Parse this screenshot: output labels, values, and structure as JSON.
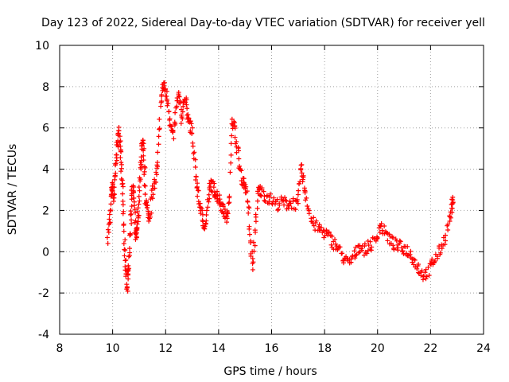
{
  "chart_data": {
    "type": "scatter",
    "title": "Day 123 of 2022, Sidereal Day-to-day VTEC variation (SDTVAR) for receiver yell",
    "xlabel": "GPS time / hours",
    "ylabel": "SDTVAR / TECUs",
    "xlim": [
      8,
      24
    ],
    "ylim": [
      -4,
      10
    ],
    "xticks": [
      8,
      10,
      12,
      14,
      16,
      18,
      20,
      22,
      24
    ],
    "yticks": [
      -4,
      -2,
      0,
      2,
      4,
      6,
      8,
      10
    ],
    "xtick_labels": [
      "8",
      "10",
      "12",
      "14",
      "16",
      "18",
      "20",
      "22",
      "24"
    ],
    "ytick_labels": [
      "-4",
      "-2",
      "0",
      "2",
      "4",
      "6",
      "8",
      "10"
    ],
    "grid": true,
    "marker": "+",
    "series": [
      {
        "name": "SDTVAR",
        "color": "#ff0000",
        "trace": [
          [
            9.8,
            0.7
          ],
          [
            9.9,
            1.5
          ],
          [
            9.95,
            2.8
          ],
          [
            10.0,
            3.2
          ],
          [
            10.05,
            2.5
          ],
          [
            10.1,
            3.8
          ],
          [
            10.15,
            4.8
          ],
          [
            10.2,
            5.5
          ],
          [
            10.25,
            5.8
          ],
          [
            10.3,
            4.9
          ],
          [
            10.35,
            3.5
          ],
          [
            10.4,
            2.0
          ],
          [
            10.45,
            0.0
          ],
          [
            10.5,
            -1.0
          ],
          [
            10.55,
            -1.8
          ],
          [
            10.6,
            -0.8
          ],
          [
            10.65,
            0.5
          ],
          [
            10.7,
            2.0
          ],
          [
            10.75,
            3.2
          ],
          [
            10.8,
            2.6
          ],
          [
            10.85,
            1.0
          ],
          [
            10.9,
            0.6
          ],
          [
            10.95,
            1.4
          ],
          [
            11.0,
            2.5
          ],
          [
            11.05,
            3.8
          ],
          [
            11.1,
            4.9
          ],
          [
            11.15,
            5.2
          ],
          [
            11.2,
            4.0
          ],
          [
            11.25,
            2.6
          ],
          [
            11.3,
            2.0
          ],
          [
            11.4,
            1.7
          ],
          [
            11.5,
            2.8
          ],
          [
            11.6,
            3.4
          ],
          [
            11.7,
            4.2
          ],
          [
            11.8,
            7.0
          ],
          [
            11.9,
            8.1
          ],
          [
            12.0,
            7.8
          ],
          [
            12.1,
            7.2
          ],
          [
            12.2,
            6.0
          ],
          [
            12.3,
            5.5
          ],
          [
            12.4,
            7.0
          ],
          [
            12.5,
            7.6
          ],
          [
            12.6,
            6.4
          ],
          [
            12.7,
            7.5
          ],
          [
            12.8,
            7.0
          ],
          [
            12.9,
            6.2
          ],
          [
            13.0,
            5.8
          ],
          [
            13.1,
            4.2
          ],
          [
            13.2,
            3.0
          ],
          [
            13.3,
            2.2
          ],
          [
            13.4,
            1.6
          ],
          [
            13.5,
            1.2
          ],
          [
            13.6,
            2.5
          ],
          [
            13.7,
            3.3
          ],
          [
            13.8,
            3.1
          ],
          [
            13.9,
            2.8
          ],
          [
            14.0,
            2.6
          ],
          [
            14.1,
            2.3
          ],
          [
            14.2,
            2.0
          ],
          [
            14.3,
            1.6
          ],
          [
            14.4,
            2.4
          ],
          [
            14.5,
            6.5
          ],
          [
            14.6,
            6.0
          ],
          [
            14.7,
            5.1
          ],
          [
            14.8,
            4.0
          ],
          [
            14.9,
            3.5
          ],
          [
            15.0,
            3.2
          ],
          [
            15.1,
            2.5
          ],
          [
            15.2,
            0.5
          ],
          [
            15.3,
            -0.8
          ],
          [
            15.4,
            1.5
          ],
          [
            15.5,
            3.0
          ],
          [
            15.6,
            2.9
          ],
          [
            15.8,
            2.7
          ],
          [
            16.0,
            2.5
          ],
          [
            16.2,
            2.3
          ],
          [
            16.4,
            2.4
          ],
          [
            16.6,
            2.3
          ],
          [
            16.8,
            2.4
          ],
          [
            17.0,
            2.2
          ],
          [
            17.1,
            4.1
          ],
          [
            17.2,
            3.5
          ],
          [
            17.3,
            2.6
          ],
          [
            17.5,
            1.5
          ],
          [
            17.7,
            1.2
          ],
          [
            17.9,
            1.0
          ],
          [
            18.1,
            0.8
          ],
          [
            18.3,
            0.5
          ],
          [
            18.5,
            0.2
          ],
          [
            18.7,
            -0.3
          ],
          [
            18.9,
            -0.6
          ],
          [
            19.1,
            -0.2
          ],
          [
            19.3,
            0.3
          ],
          [
            19.5,
            0.1
          ],
          [
            19.7,
            0.3
          ],
          [
            19.9,
            0.5
          ],
          [
            20.1,
            1.3
          ],
          [
            20.3,
            0.9
          ],
          [
            20.5,
            0.5
          ],
          [
            20.7,
            0.3
          ],
          [
            20.9,
            0.2
          ],
          [
            21.1,
            0.1
          ],
          [
            21.3,
            -0.2
          ],
          [
            21.5,
            -0.7
          ],
          [
            21.7,
            -1.1
          ],
          [
            21.9,
            -1.0
          ],
          [
            22.1,
            -0.5
          ],
          [
            22.3,
            -0.1
          ],
          [
            22.5,
            0.5
          ],
          [
            22.7,
            1.5
          ],
          [
            22.8,
            2.2
          ],
          [
            22.85,
            2.4
          ]
        ]
      }
    ]
  }
}
